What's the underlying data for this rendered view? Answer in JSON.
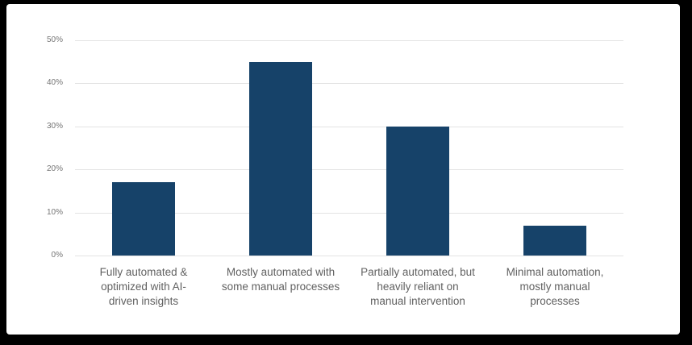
{
  "frame": {
    "border_color": "#000000",
    "card_background": "#ffffff"
  },
  "chart_data": {
    "type": "bar",
    "title": "",
    "xlabel": "",
    "ylabel": "",
    "categories": [
      "Fully automated & optimized with AI-driven insights",
      "Mostly automated with some manual processes",
      "Partially automated, but heavily reliant on manual intervention",
      "Minimal automation, mostly manual processes"
    ],
    "category_display_lines": [
      [
        "Fully automated &",
        "optimized with AI-",
        "driven insights"
      ],
      [
        "Mostly automated with",
        "some manual processes"
      ],
      [
        "Partially automated, but",
        "heavily reliant on",
        "manual intervention"
      ],
      [
        "Minimal automation,",
        "mostly manual",
        "processes"
      ]
    ],
    "values": [
      17,
      45,
      30,
      7
    ],
    "value_unit": "%",
    "ylim": [
      0,
      50
    ],
    "ytick_labels": [
      "0%",
      "10%",
      "20%",
      "30%",
      "40%",
      "50%"
    ],
    "ytick_values": [
      0,
      10,
      20,
      30,
      40,
      50
    ],
    "grid": true,
    "legend": "none",
    "colors": {
      "bar": "#164269",
      "gridline": "#e3e3e3",
      "ytick_text": "#757575",
      "xtick_text": "#616161"
    }
  }
}
